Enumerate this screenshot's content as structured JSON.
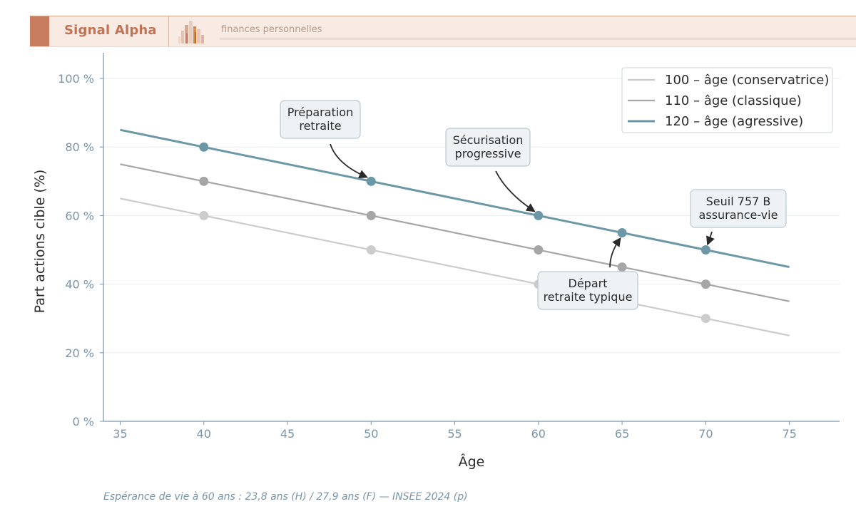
{
  "header": {
    "brand": "Signal Alpha",
    "tagline": "finances personnelles"
  },
  "footnote": "Espérance de vie à 60 ans : 23,8 ans (H) / 27,9 ans (F) — INSEE 2024 (p)",
  "chart_data": {
    "type": "line",
    "title": "",
    "xlabel": "Âge",
    "ylabel": "Part actions cible (%)",
    "xlim": [
      34,
      78
    ],
    "ylim": [
      0,
      105
    ],
    "x_ticks": [
      35,
      40,
      45,
      50,
      55,
      60,
      65,
      70,
      75
    ],
    "y_ticks": [
      0,
      20,
      40,
      60,
      80,
      100
    ],
    "y_tick_labels": [
      "0 %",
      "20 %",
      "40 %",
      "60 %",
      "80 %",
      "100 %"
    ],
    "grid": "horizontal",
    "legend_position": "top-right",
    "series": [
      {
        "name": "100 – âge (conservatrice)",
        "color": "#cccccc",
        "x": [
          35,
          75
        ],
        "y": [
          65,
          25
        ],
        "markers_x": [
          40,
          50,
          60,
          65,
          70
        ],
        "markers_y": [
          60,
          50,
          40,
          35,
          30
        ]
      },
      {
        "name": "110 – âge (classique)",
        "color": "#a6a6a6",
        "x": [
          35,
          75
        ],
        "y": [
          75,
          35
        ],
        "markers_x": [
          40,
          50,
          60,
          65,
          70
        ],
        "markers_y": [
          70,
          60,
          50,
          45,
          40
        ]
      },
      {
        "name": "120 – âge (agressive)",
        "color": "#6b97a6",
        "x": [
          35,
          75
        ],
        "y": [
          85,
          45
        ],
        "markers_x": [
          40,
          50,
          60,
          65,
          70
        ],
        "markers_y": [
          80,
          70,
          60,
          55,
          50
        ]
      }
    ],
    "annotations": [
      {
        "lines": [
          "Préparation",
          "retraite"
        ],
        "target": [
          50,
          70
        ]
      },
      {
        "lines": [
          "Sécurisation",
          "progressive"
        ],
        "target": [
          60,
          60
        ]
      },
      {
        "lines": [
          "Seuil 757 B",
          "assurance-vie"
        ],
        "target": [
          70,
          50
        ]
      },
      {
        "lines": [
          "Départ",
          "retraite typique"
        ],
        "target": [
          65,
          55
        ]
      }
    ]
  }
}
